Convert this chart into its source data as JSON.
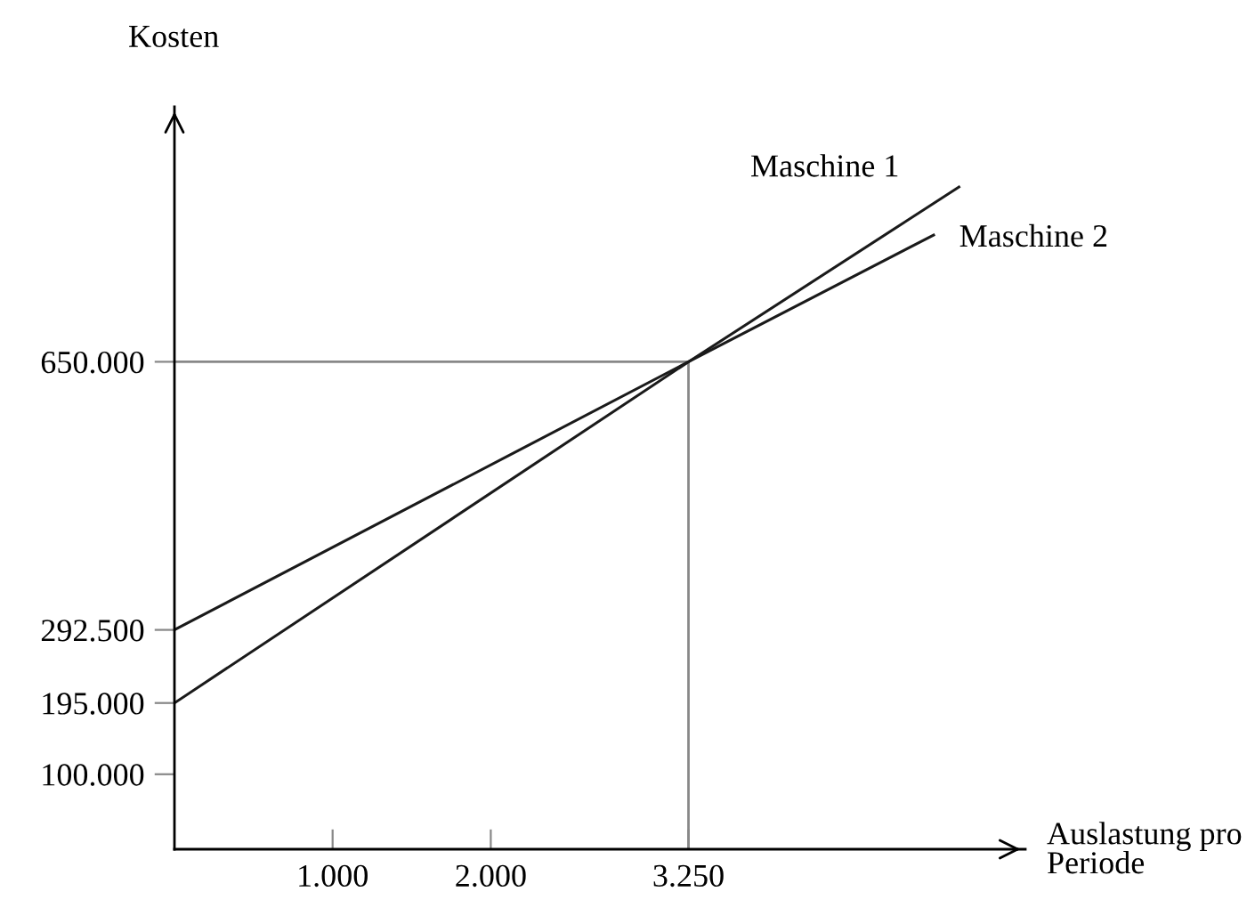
{
  "chart_data": {
    "type": "line",
    "ylabel": "Kosten",
    "xlabel": "Auslastung pro\nPeriode",
    "xlim": [
      0,
      5380
    ],
    "ylim": [
      0,
      990000
    ],
    "xticks": [
      {
        "value": 1000,
        "label": "1.000"
      },
      {
        "value": 2000,
        "label": "2.000"
      },
      {
        "value": 3250,
        "label": "3.250"
      }
    ],
    "yticks": [
      {
        "value": 100000,
        "label": "100.000"
      },
      {
        "value": 195000,
        "label": "195.000"
      },
      {
        "value": 292500,
        "label": "292.500"
      },
      {
        "value": 650000,
        "label": "650.000"
      }
    ],
    "series": [
      {
        "name": "Maschine 1",
        "color": "#1a1a1a",
        "x": [
          0,
          3250,
          4960
        ],
        "values": [
          195000,
          650000,
          883000
        ]
      },
      {
        "name": "Maschine 2",
        "color": "#1a1a1a",
        "x": [
          0,
          3250,
          4800
        ],
        "values": [
          292500,
          650000,
          819000
        ]
      }
    ],
    "ref_lines": [
      {
        "axis": "x",
        "value": 3250,
        "color": "#888888"
      },
      {
        "axis": "y",
        "value": 650000,
        "color": "#888888"
      }
    ],
    "grid": false,
    "legend": false,
    "marker": "none",
    "line_style": "solid"
  }
}
